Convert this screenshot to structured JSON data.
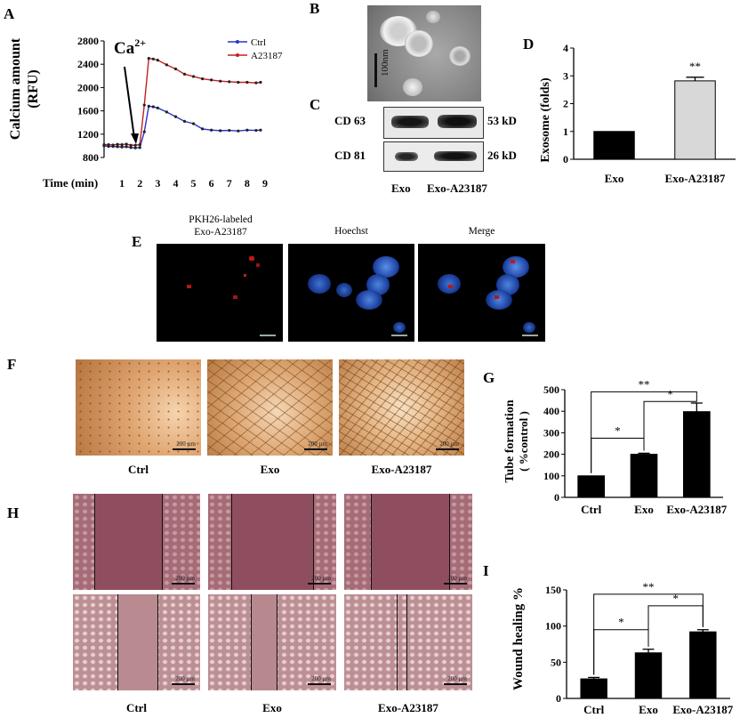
{
  "panel_labels": {
    "a": "A",
    "b": "B",
    "c": "C",
    "d": "D",
    "e": "E",
    "f": "F",
    "g": "G",
    "h": "H",
    "i": "I"
  },
  "panel_a": {
    "ylabel": "Calcium amount",
    "ylabel_unit": "(RFU)",
    "xlabel": "Time (min)",
    "annotation": "Ca",
    "annotation_sup": "2+",
    "legend": [
      "Ctrl",
      "A23187"
    ]
  },
  "panel_b": {
    "scale_label": "100nm"
  },
  "panel_c": {
    "rows": [
      {
        "name": "CD 63",
        "size": "53 kD"
      },
      {
        "name": "CD 81",
        "size": "26 kD"
      }
    ],
    "lanes": [
      "Exo",
      "Exo-A23187"
    ]
  },
  "panel_e": {
    "titles": [
      "PKH26-labeled",
      "Exo-A23187",
      "Hoechst",
      "Merge"
    ]
  },
  "panel_f": {
    "captions": [
      "Ctrl",
      "Exo",
      "Exo-A23187"
    ],
    "scale_label": "200 µm"
  },
  "panel_h": {
    "captions": [
      "Ctrl",
      "Exo",
      "Exo-A23187"
    ],
    "scale_label": "200 µm"
  },
  "colors": {
    "ctrl_line": "#2a35c9",
    "a23187_line": "#c42020",
    "bar_gray": "#d8d8d8",
    "bar_black": "#000000"
  },
  "chart_data": [
    {
      "id": "A",
      "type": "line",
      "title": "",
      "xlabel": "Time (min)",
      "ylabel": "Calcium amount (RFU)",
      "xlim": [
        0,
        9
      ],
      "ylim": [
        800,
        2800
      ],
      "xticks": [
        1,
        2,
        3,
        4,
        5,
        6,
        7,
        8,
        9
      ],
      "yticks": [
        800,
        1200,
        1600,
        2000,
        2400,
        2800
      ],
      "series": [
        {
          "name": "Ctrl",
          "x": [
            0,
            0.25,
            0.5,
            0.75,
            1,
            1.25,
            1.5,
            1.75,
            2,
            2.25,
            2.5,
            2.75,
            3,
            3.5,
            4,
            4.5,
            5,
            5.5,
            6,
            6.5,
            7,
            7.5,
            8,
            8.5,
            8.75
          ],
          "y": [
            1000,
            990,
            990,
            985,
            980,
            985,
            970,
            965,
            970,
            1240,
            1680,
            1670,
            1650,
            1580,
            1500,
            1420,
            1380,
            1290,
            1270,
            1260,
            1265,
            1255,
            1270,
            1265,
            1270
          ]
        },
        {
          "name": "A23187",
          "x": [
            0,
            0.25,
            0.5,
            0.75,
            1,
            1.25,
            1.5,
            1.75,
            2,
            2.25,
            2.5,
            2.75,
            3,
            3.5,
            4,
            4.5,
            5,
            5.5,
            6,
            6.5,
            7,
            7.5,
            8,
            8.5,
            8.75
          ],
          "y": [
            1020,
            1020,
            1015,
            1025,
            1020,
            1030,
            1010,
            1010,
            1020,
            1700,
            2500,
            2490,
            2470,
            2390,
            2320,
            2230,
            2190,
            2150,
            2130,
            2110,
            2100,
            2090,
            2090,
            2080,
            2090
          ]
        }
      ]
    },
    {
      "id": "D",
      "type": "bar",
      "categories": [
        "Exo",
        "Exo-A23187"
      ],
      "values": [
        1.0,
        2.82
      ],
      "errors": [
        0,
        0.13
      ],
      "ylabel": "Exosome (folds)",
      "ylim": [
        0,
        4
      ],
      "yticks": [
        0,
        1,
        2,
        3,
        4
      ],
      "annotations": [
        "",
        "**"
      ]
    },
    {
      "id": "G",
      "type": "bar",
      "categories": [
        "Ctrl",
        "Exo",
        "Exo-A23187"
      ],
      "values": [
        100,
        200,
        398
      ],
      "errors": [
        0,
        5,
        40
      ],
      "ylabel": "Tube formation",
      "ylabel_unit": "( %control )",
      "ylim": [
        0,
        500
      ],
      "yticks": [
        0,
        100,
        200,
        300,
        400,
        500
      ],
      "significance": [
        {
          "from": 0,
          "to": 1,
          "label": "*"
        },
        {
          "from": 1,
          "to": 2,
          "label": "*"
        },
        {
          "from": 0,
          "to": 2,
          "label": "**"
        }
      ]
    },
    {
      "id": "I",
      "type": "bar",
      "categories": [
        "Ctrl",
        "Exo",
        "Exo-A23187"
      ],
      "values": [
        27,
        63,
        92
      ],
      "errors": [
        2,
        5,
        3
      ],
      "ylabel": "Wound healing %",
      "ylim": [
        0,
        150
      ],
      "yticks": [
        0,
        50,
        100,
        150
      ],
      "significance": [
        {
          "from": 0,
          "to": 1,
          "label": "*"
        },
        {
          "from": 1,
          "to": 2,
          "label": "*"
        },
        {
          "from": 0,
          "to": 2,
          "label": "**"
        }
      ]
    }
  ]
}
